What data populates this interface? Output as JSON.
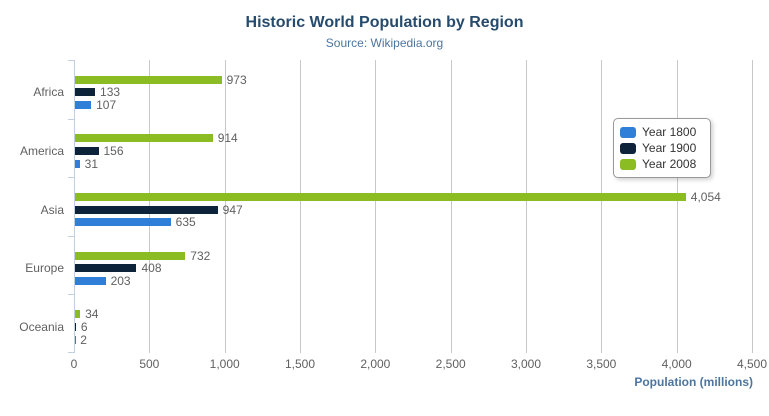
{
  "chart_data": {
    "type": "bar",
    "title": "Historic World Population by Region",
    "subtitle": "Source: Wikipedia.org",
    "categories": [
      "Africa",
      "America",
      "Asia",
      "Europe",
      "Oceania"
    ],
    "series": [
      {
        "name": "Year 1800",
        "color": "#2f7ed8",
        "values": [
          107,
          31,
          635,
          203,
          2
        ],
        "value_labels": [
          "107",
          "31",
          "635",
          "203",
          "2"
        ]
      },
      {
        "name": "Year 1900",
        "color": "#0d233a",
        "values": [
          133,
          156,
          947,
          408,
          6
        ],
        "value_labels": [
          "133",
          "156",
          "947",
          "408",
          "6"
        ]
      },
      {
        "name": "Year 2008",
        "color": "#8bbc21",
        "values": [
          973,
          914,
          4054,
          732,
          34
        ],
        "value_labels": [
          "973",
          "914",
          "4,054",
          "732",
          "34"
        ]
      }
    ],
    "series_display_order_top_to_bottom": [
      "Year 2008",
      "Year 1900",
      "Year 1800"
    ],
    "xlabel": "Population (millions)",
    "ylabel": "",
    "xlim": [
      0,
      4500
    ],
    "tick_interval": 500,
    "tick_labels": [
      "0",
      "500",
      "1,000",
      "1,500",
      "2,000",
      "2,500",
      "3,000",
      "3,500",
      "4,000",
      "4,500"
    ],
    "grid": true,
    "legend_position": "right-floating"
  },
  "palette": {
    "title_color": "#274b6d",
    "subtitle_color": "#4d759e",
    "axis_label_color": "#606060",
    "data_label_color": "#606060",
    "gridline_color": "#c8c8c8",
    "axis_line_color": "#c0d0e0",
    "legend_border_color": "#999999",
    "menu_icon_color": "#666666",
    "background": "#ffffff"
  },
  "menu": {
    "icon": "hamburger-menu-icon"
  }
}
